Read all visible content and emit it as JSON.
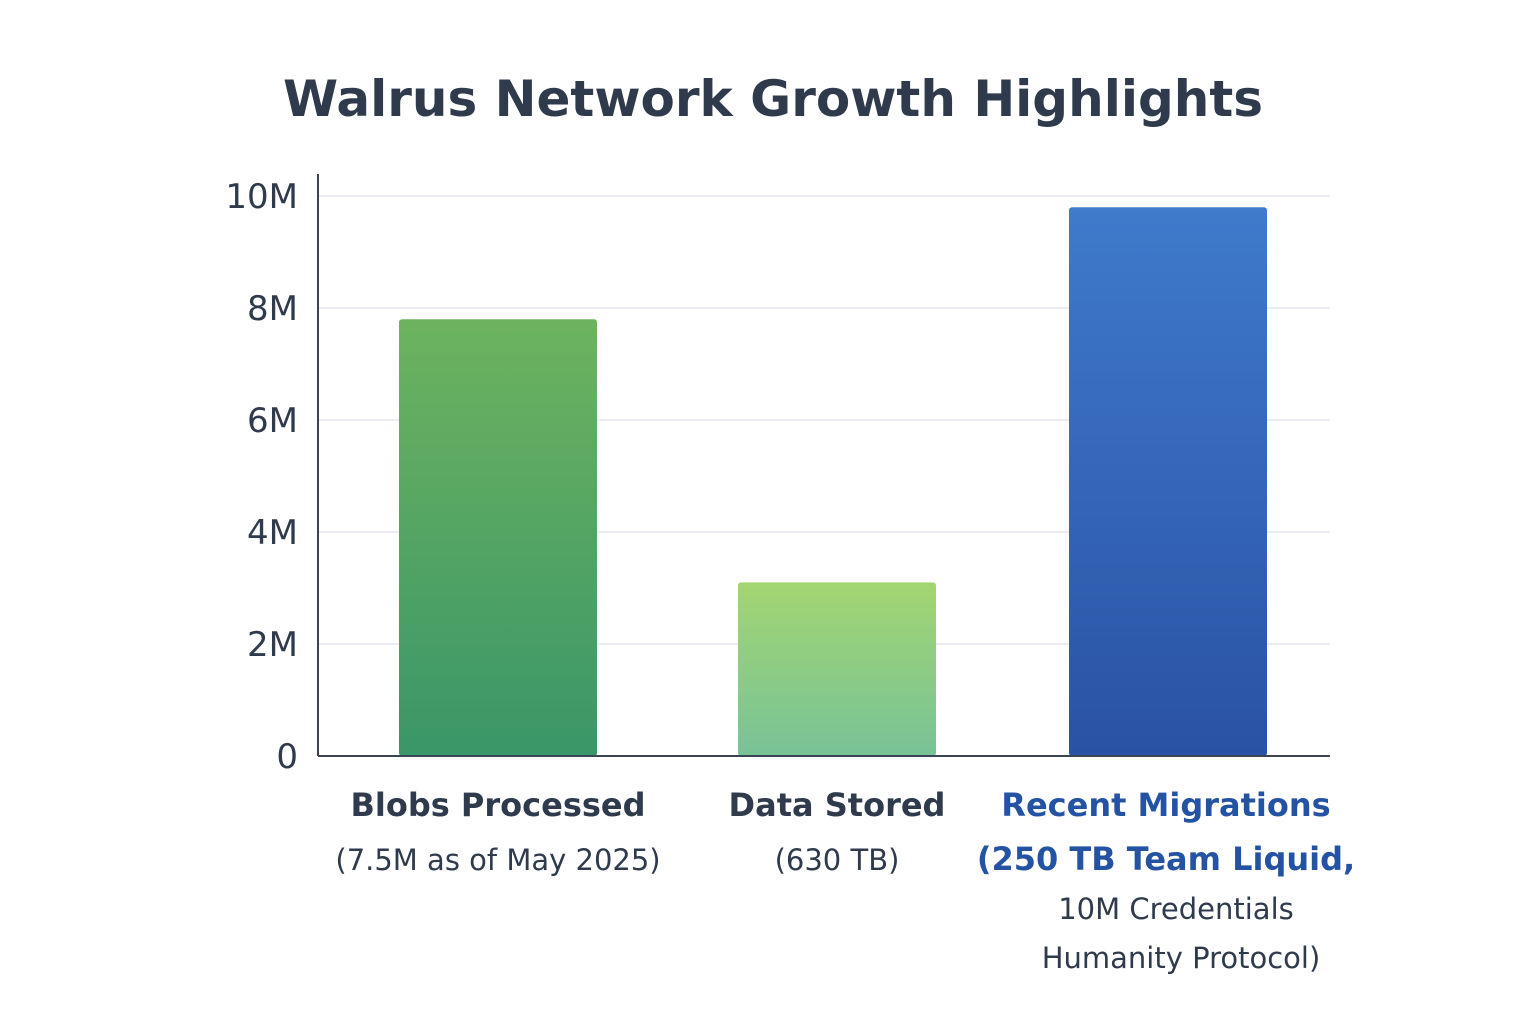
{
  "chart_data": {
    "type": "bar",
    "title": "Walrus Network Growth Highlights",
    "xlabel": "",
    "ylabel": "",
    "ylim": [
      0,
      10000000
    ],
    "yticks": [
      {
        "value": 0,
        "label": "0"
      },
      {
        "value": 2000000,
        "label": "2M"
      },
      {
        "value": 4000000,
        "label": "4M"
      },
      {
        "value": 6000000,
        "label": "6M"
      },
      {
        "value": 8000000,
        "label": "8M"
      },
      {
        "value": 10000000,
        "label": "10M"
      }
    ],
    "grid": true,
    "categories": [
      {
        "label": "Blobs Processed",
        "sublines": [
          "(7.5M as of May 2025)"
        ],
        "accent": false
      },
      {
        "label": "Data Stored",
        "sublines": [
          "(630 TB)"
        ],
        "accent": false
      },
      {
        "label": "Recent Migrations",
        "sublines": [
          "(250 TB Team Liquid,",
          "10M Credentials",
          "Humanity Protocol)"
        ],
        "accent": true
      }
    ],
    "values": [
      7800000,
      3100000,
      9800000
    ],
    "colors": {
      "bars": [
        {
          "top": "#6db35f",
          "bottom": "#3a9668"
        },
        {
          "top": "#a3d672",
          "bottom": "#77c297"
        },
        {
          "top": "#3f7acb",
          "bottom": "#2a52a4"
        }
      ],
      "accent_label": "#2553a3",
      "text": "#2f3b4c",
      "grid": "#e3e6ea",
      "axis": "#3a4452"
    }
  }
}
